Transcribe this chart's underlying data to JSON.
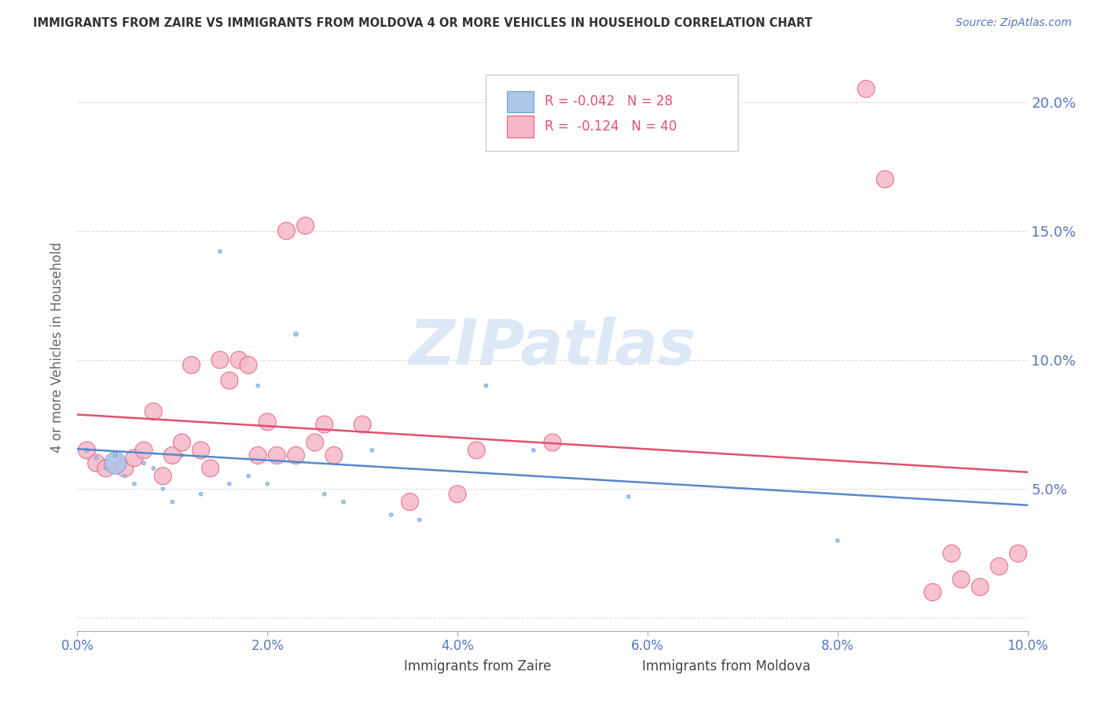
{
  "title": "IMMIGRANTS FROM ZAIRE VS IMMIGRANTS FROM MOLDOVA 4 OR MORE VEHICLES IN HOUSEHOLD CORRELATION CHART",
  "source": "Source: ZipAtlas.com",
  "ylabel": "4 or more Vehicles in Household",
  "legend_zaire": {
    "R": "-0.042",
    "N": "28"
  },
  "legend_moldova": {
    "R": "-0.124",
    "N": "40"
  },
  "zaire_color": "#aec6e8",
  "moldova_color": "#f5b8c8",
  "zaire_edge_color": "#6a9fd8",
  "moldova_edge_color": "#e8607a",
  "zaire_line_color": "#5588cc",
  "moldova_line_color": "#e05070",
  "title_color": "#333333",
  "right_axis_color": "#5577bb",
  "source_color": "#5577bb",
  "watermark_color": "#dce8f5",
  "background_color": "#ffffff",
  "grid_color": "#dddddd",
  "xlim": [
    0.0,
    0.1
  ],
  "ylim": [
    -0.005,
    0.215
  ],
  "yticks": [
    0.0,
    0.05,
    0.1,
    0.15,
    0.2
  ],
  "ytick_labels": [
    "",
    "5.0%",
    "10.0%",
    "15.0%",
    "20.0%"
  ],
  "xticks": [
    0.0,
    0.02,
    0.04,
    0.06,
    0.08,
    0.1
  ],
  "xtick_labels": [
    "0.0%",
    "2.0%",
    "4.0%",
    "6.0%",
    "8.0%",
    "10.0%"
  ],
  "zaire_x": [
    0.001,
    0.002,
    0.003,
    0.004,
    0.004,
    0.005,
    0.006,
    0.007,
    0.008,
    0.009,
    0.01,
    0.011,
    0.013,
    0.015,
    0.016,
    0.018,
    0.019,
    0.02,
    0.023,
    0.026,
    0.028,
    0.031,
    0.033,
    0.036,
    0.043,
    0.048,
    0.058,
    0.08
  ],
  "zaire_y": [
    0.065,
    0.062,
    0.058,
    0.06,
    0.063,
    0.055,
    0.052,
    0.06,
    0.058,
    0.05,
    0.045,
    0.063,
    0.048,
    0.142,
    0.052,
    0.055,
    0.09,
    0.052,
    0.11,
    0.048,
    0.045,
    0.065,
    0.04,
    0.038,
    0.09,
    0.065,
    0.047,
    0.03
  ],
  "zaire_sizes": [
    15,
    10,
    10,
    400,
    10,
    10,
    10,
    10,
    10,
    10,
    10,
    10,
    10,
    10,
    10,
    10,
    10,
    10,
    15,
    10,
    10,
    10,
    10,
    10,
    10,
    10,
    10,
    10
  ],
  "moldova_x": [
    0.001,
    0.002,
    0.003,
    0.004,
    0.005,
    0.006,
    0.007,
    0.008,
    0.009,
    0.01,
    0.011,
    0.012,
    0.013,
    0.014,
    0.015,
    0.016,
    0.017,
    0.018,
    0.019,
    0.02,
    0.021,
    0.022,
    0.023,
    0.024,
    0.025,
    0.026,
    0.027,
    0.03,
    0.035,
    0.04,
    0.042,
    0.05,
    0.083,
    0.085,
    0.09,
    0.092,
    0.093,
    0.095,
    0.097,
    0.099
  ],
  "moldova_y": [
    0.065,
    0.06,
    0.058,
    0.06,
    0.058,
    0.062,
    0.065,
    0.08,
    0.055,
    0.063,
    0.068,
    0.098,
    0.065,
    0.058,
    0.1,
    0.092,
    0.1,
    0.098,
    0.063,
    0.076,
    0.063,
    0.15,
    0.063,
    0.152,
    0.068,
    0.075,
    0.063,
    0.075,
    0.045,
    0.048,
    0.065,
    0.068,
    0.205,
    0.17,
    0.01,
    0.025,
    0.015,
    0.012,
    0.02,
    0.025
  ],
  "moldova_sizes": [
    10,
    10,
    10,
    10,
    10,
    10,
    10,
    10,
    10,
    10,
    10,
    10,
    10,
    10,
    10,
    10,
    10,
    10,
    10,
    10,
    10,
    10,
    10,
    10,
    10,
    10,
    10,
    10,
    10,
    10,
    10,
    10,
    10,
    10,
    10,
    10,
    10,
    10,
    10,
    10
  ]
}
